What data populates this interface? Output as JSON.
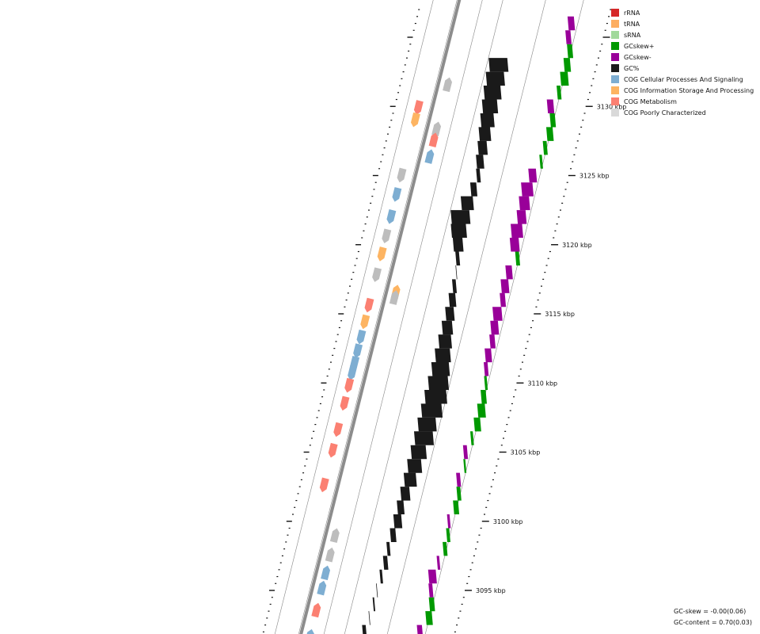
{
  "legend": [
    {
      "label": "rRNA",
      "color": "#d62728"
    },
    {
      "label": "tRNA",
      "color": "#fdae61"
    },
    {
      "label": "sRNA",
      "color": "#a1d99b"
    },
    {
      "label": "GCskew+",
      "color": "#009900"
    },
    {
      "label": "GCskew-",
      "color": "#990099"
    },
    {
      "label": "GC%",
      "color": "#1a1a1a"
    },
    {
      "label": "COG Cellular Processes And Signaling",
      "color": "#7eaed2"
    },
    {
      "label": "COG Information Storage And Processing",
      "color": "#fdb462"
    },
    {
      "label": "COG Metabolism",
      "color": "#fb8072"
    },
    {
      "label": "COG Poorly Characterized",
      "color": "#d9d9d9"
    }
  ],
  "scale": {
    "unit": "kbp",
    "major_ticks": [
      {
        "value": 3095,
        "label": "3095 kbp"
      },
      {
        "value": 3100,
        "label": "3100 kbp"
      },
      {
        "value": 3105,
        "label": "3105 kbp"
      },
      {
        "value": 3110,
        "label": "3110 kbp"
      },
      {
        "value": 3115,
        "label": "3115 kbp"
      },
      {
        "value": 3120,
        "label": "3120 kbp"
      },
      {
        "value": 3125,
        "label": "3125 kbp"
      },
      {
        "value": 3130,
        "label": "3130 kbp"
      }
    ]
  },
  "features": [
    {
      "pos": 3131.6,
      "strand": 1,
      "cog": "COG Poorly Characterized"
    },
    {
      "pos": 3129.9,
      "strand": -1,
      "cog": "COG Metabolism"
    },
    {
      "pos": 3129.0,
      "strand": -1,
      "cog": "COG Information Storage And Processing"
    },
    {
      "pos": 3128.4,
      "strand": 1,
      "cog": "COG Poorly Characterized"
    },
    {
      "pos": 3127.6,
      "strand": 1,
      "cog": "COG Metabolism"
    },
    {
      "pos": 3126.4,
      "strand": 1,
      "cog": "COG Cellular Processes And Signaling"
    },
    {
      "pos": 3125.0,
      "strand": -1,
      "cog": "COG Poorly Characterized"
    },
    {
      "pos": 3123.6,
      "strand": -1,
      "cog": "COG Cellular Processes And Signaling"
    },
    {
      "pos": 3122.0,
      "strand": -1,
      "cog": "COG Cellular Processes And Signaling"
    },
    {
      "pos": 3120.6,
      "strand": -1,
      "cog": "COG Poorly Characterized"
    },
    {
      "pos": 3119.3,
      "strand": -1,
      "cog": "COG Information Storage And Processing"
    },
    {
      "pos": 3117.8,
      "strand": -1,
      "cog": "COG Poorly Characterized"
    },
    {
      "pos": 3116.6,
      "strand": 1,
      "cog": "COG Information Storage And Processing"
    },
    {
      "pos": 3116.2,
      "strand": 1,
      "cog": "COG Poorly Characterized"
    },
    {
      "pos": 3115.6,
      "strand": -1,
      "cog": "COG Metabolism"
    },
    {
      "pos": 3114.4,
      "strand": -1,
      "cog": "COG Information Storage And Processing"
    },
    {
      "pos": 3113.3,
      "strand": -1,
      "cog": "COG Cellular Processes And Signaling"
    },
    {
      "pos": 3112.3,
      "strand": -1,
      "cog": "COG Cellular Processes And Signaling"
    },
    {
      "pos": 3111.4,
      "strand": -1,
      "cog": "COG Cellular Processes And Signaling"
    },
    {
      "pos": 3110.7,
      "strand": -1,
      "cog": "COG Cellular Processes And Signaling"
    },
    {
      "pos": 3109.8,
      "strand": -1,
      "cog": "COG Metabolism"
    },
    {
      "pos": 3108.5,
      "strand": -1,
      "cog": "COG Metabolism"
    },
    {
      "pos": 3106.6,
      "strand": -1,
      "cog": "COG Metabolism"
    },
    {
      "pos": 3105.1,
      "strand": -1,
      "cog": "COG Metabolism"
    },
    {
      "pos": 3102.6,
      "strand": -1,
      "cog": "COG Metabolism"
    },
    {
      "pos": 3099.0,
      "strand": 1,
      "cog": "COG Poorly Characterized"
    },
    {
      "pos": 3097.6,
      "strand": 1,
      "cog": "COG Poorly Characterized"
    },
    {
      "pos": 3096.3,
      "strand": 1,
      "cog": "COG Cellular Processes And Signaling"
    },
    {
      "pos": 3095.2,
      "strand": 1,
      "cog": "COG Cellular Processes And Signaling"
    },
    {
      "pos": 3093.6,
      "strand": 1,
      "cog": "COG Metabolism"
    },
    {
      "pos": 3091.7,
      "strand": 1,
      "cog": "COG Cellular Processes And Signaling"
    }
  ],
  "gc_content": [
    {
      "pos": 3092.0,
      "value": -0.12
    },
    {
      "pos": 3093.0,
      "value": -0.02
    },
    {
      "pos": 3094.0,
      "value": 0.05
    },
    {
      "pos": 3095.0,
      "value": 0.02
    },
    {
      "pos": 3096.0,
      "value": 0.08
    },
    {
      "pos": 3097.0,
      "value": 0.14
    },
    {
      "pos": 3098.0,
      "value": 0.1
    },
    {
      "pos": 3099.0,
      "value": 0.18
    },
    {
      "pos": 3100.0,
      "value": 0.26
    },
    {
      "pos": 3101.0,
      "value": 0.22
    },
    {
      "pos": 3102.0,
      "value": 0.3
    },
    {
      "pos": 3103.0,
      "value": 0.4
    },
    {
      "pos": 3104.0,
      "value": 0.46
    },
    {
      "pos": 3105.0,
      "value": 0.5
    },
    {
      "pos": 3106.0,
      "value": 0.62
    },
    {
      "pos": 3107.0,
      "value": 0.6
    },
    {
      "pos": 3108.0,
      "value": 0.68
    },
    {
      "pos": 3109.0,
      "value": 0.72
    },
    {
      "pos": 3110.0,
      "value": 0.66
    },
    {
      "pos": 3111.0,
      "value": 0.58
    },
    {
      "pos": 3112.0,
      "value": 0.5
    },
    {
      "pos": 3113.0,
      "value": 0.42
    },
    {
      "pos": 3114.0,
      "value": 0.34
    },
    {
      "pos": 3115.0,
      "value": 0.28
    },
    {
      "pos": 3116.0,
      "value": 0.22
    },
    {
      "pos": 3117.0,
      "value": 0.12
    },
    {
      "pos": 3118.0,
      "value": 0.02
    },
    {
      "pos": 3119.0,
      "value": -0.12
    },
    {
      "pos": 3120.0,
      "value": -0.32
    },
    {
      "pos": 3121.0,
      "value": -0.5
    },
    {
      "pos": 3122.0,
      "value": -0.62
    },
    {
      "pos": 3123.0,
      "value": -0.4
    },
    {
      "pos": 3124.0,
      "value": -0.2
    },
    {
      "pos": 3125.0,
      "value": -0.12
    },
    {
      "pos": 3126.0,
      "value": -0.24
    },
    {
      "pos": 3127.0,
      "value": -0.3
    },
    {
      "pos": 3128.0,
      "value": -0.38
    },
    {
      "pos": 3129.0,
      "value": -0.44
    },
    {
      "pos": 3130.0,
      "value": -0.5
    },
    {
      "pos": 3131.0,
      "value": -0.56
    },
    {
      "pos": 3132.0,
      "value": -0.6
    },
    {
      "pos": 3133.0,
      "value": -0.62
    }
  ],
  "gc_skew": [
    {
      "pos": 3091.0,
      "value": -0.2
    },
    {
      "pos": 3092.0,
      "value": -0.4
    },
    {
      "pos": 3093.0,
      "value": 0.5
    },
    {
      "pos": 3094.0,
      "value": 0.4
    },
    {
      "pos": 3095.0,
      "value": -0.3
    },
    {
      "pos": 3096.0,
      "value": -0.6
    },
    {
      "pos": 3097.0,
      "value": -0.2
    },
    {
      "pos": 3098.0,
      "value": 0.3
    },
    {
      "pos": 3099.0,
      "value": 0.25
    },
    {
      "pos": 3100.0,
      "value": -0.2
    },
    {
      "pos": 3101.0,
      "value": 0.4
    },
    {
      "pos": 3102.0,
      "value": 0.3
    },
    {
      "pos": 3103.0,
      "value": -0.3
    },
    {
      "pos": 3104.0,
      "value": 0.15
    },
    {
      "pos": 3105.0,
      "value": -0.3
    },
    {
      "pos": 3106.0,
      "value": 0.2
    },
    {
      "pos": 3107.0,
      "value": 0.5
    },
    {
      "pos": 3108.0,
      "value": 0.6
    },
    {
      "pos": 3109.0,
      "value": 0.4
    },
    {
      "pos": 3110.0,
      "value": 0.2
    },
    {
      "pos": 3111.0,
      "value": -0.3
    },
    {
      "pos": 3112.0,
      "value": -0.5
    },
    {
      "pos": 3113.0,
      "value": -0.4
    },
    {
      "pos": 3114.0,
      "value": -0.6
    },
    {
      "pos": 3115.0,
      "value": -0.7
    },
    {
      "pos": 3116.0,
      "value": -0.4
    },
    {
      "pos": 3117.0,
      "value": -0.6
    },
    {
      "pos": 3118.0,
      "value": -0.5
    },
    {
      "pos": 3119.0,
      "value": 0.3
    },
    {
      "pos": 3120.0,
      "value": -0.7
    },
    {
      "pos": 3121.0,
      "value": -0.9
    },
    {
      "pos": 3122.0,
      "value": -0.7
    },
    {
      "pos": 3123.0,
      "value": -0.8
    },
    {
      "pos": 3124.0,
      "value": -0.9
    },
    {
      "pos": 3125.0,
      "value": -0.6
    },
    {
      "pos": 3126.0,
      "value": 0.2
    },
    {
      "pos": 3127.0,
      "value": 0.3
    },
    {
      "pos": 3128.0,
      "value": 0.5
    },
    {
      "pos": 3129.0,
      "value": 0.4
    },
    {
      "pos": 3130.0,
      "value": -0.5
    },
    {
      "pos": 3131.0,
      "value": 0.3
    },
    {
      "pos": 3132.0,
      "value": 0.6
    },
    {
      "pos": 3133.0,
      "value": 0.5
    },
    {
      "pos": 3134.0,
      "value": 0.4
    },
    {
      "pos": 3135.0,
      "value": -0.4
    },
    {
      "pos": 3136.0,
      "value": -0.5
    }
  ],
  "stats": {
    "gc_skew": "GC-skew = -0.00(0.06)",
    "gc_content": "GC-content = 0.70(0.03)"
  }
}
